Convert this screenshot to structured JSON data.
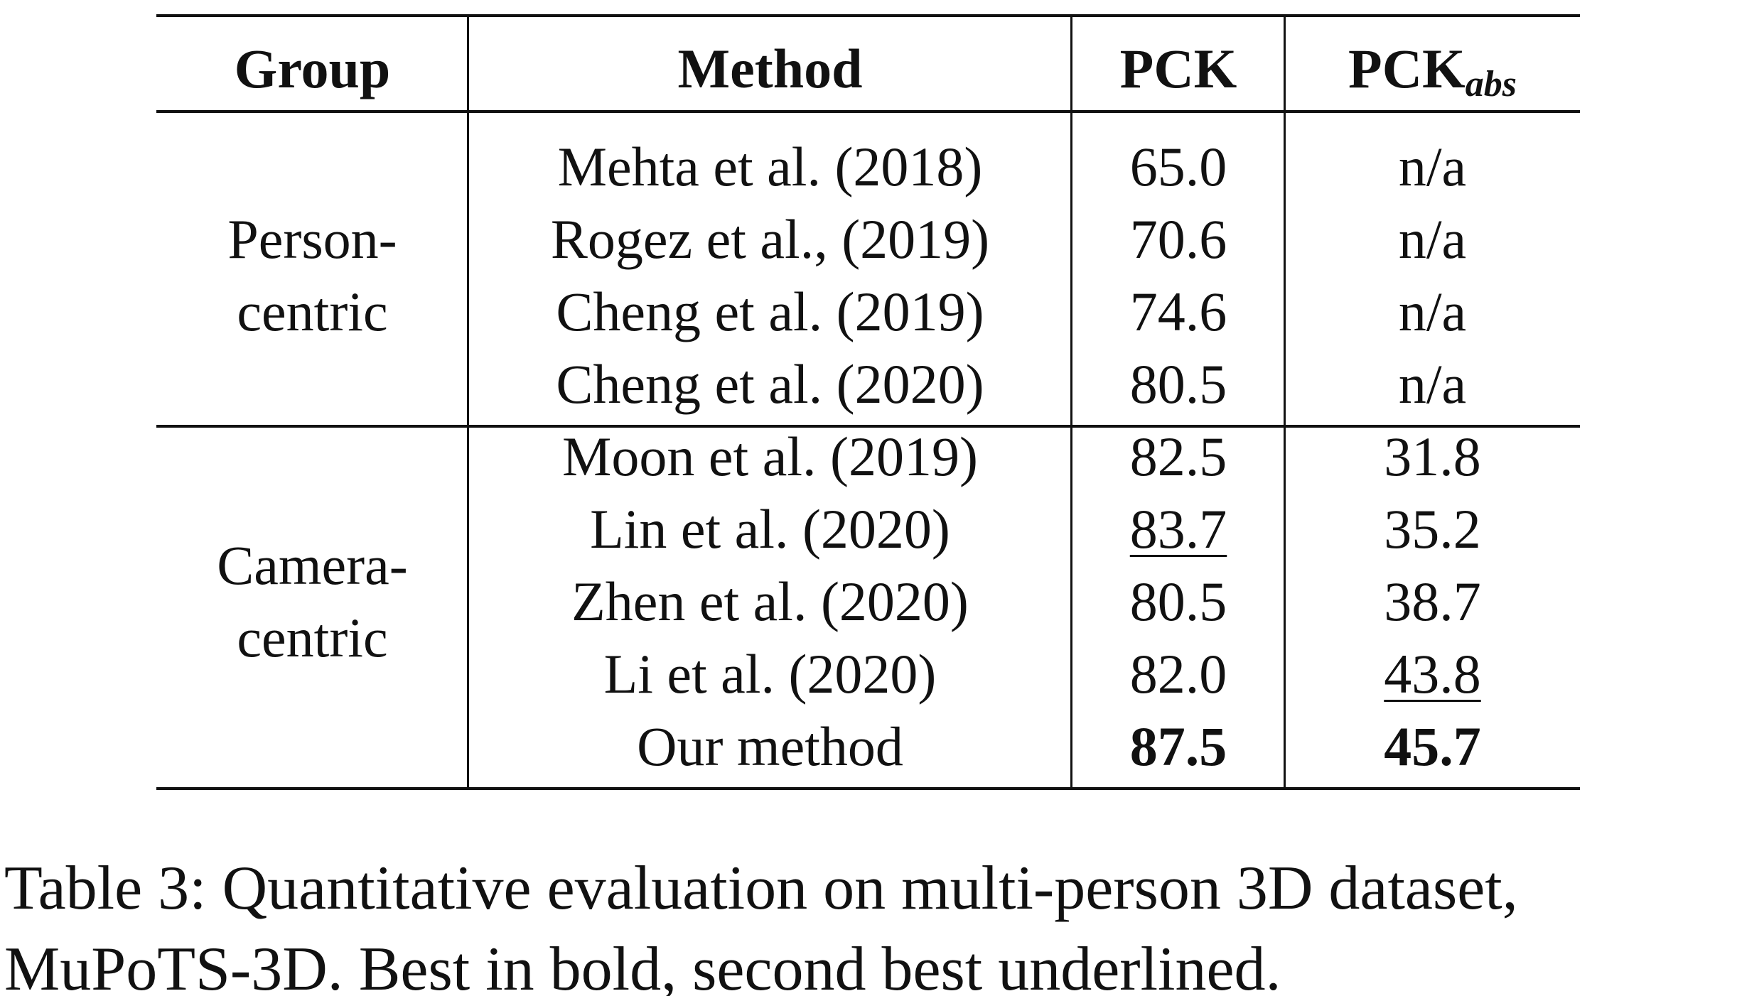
{
  "table": {
    "columns": [
      {
        "text": "Group"
      },
      {
        "text": "Method"
      },
      {
        "text": "PCK"
      },
      {
        "text": "PCK",
        "sub": "abs"
      }
    ],
    "groups": [
      {
        "label": [
          "Person-",
          "centric"
        ],
        "rows": [
          [
            "Mehta et al. (2018)",
            "65.0",
            "n/a"
          ],
          [
            "Rogez et al., (2019)",
            "70.6",
            "n/a"
          ],
          [
            "Cheng et al. (2019)",
            "74.6",
            "n/a"
          ],
          [
            "Cheng et al. (2020)",
            "80.5",
            "n/a"
          ]
        ],
        "bold": [],
        "underline": []
      },
      {
        "label": [
          "Camera-",
          "centric"
        ],
        "rows": [
          [
            "Moon et al. (2019)",
            "82.5",
            "31.8"
          ],
          [
            "Lin et al. (2020)",
            "83.7",
            "35.2"
          ],
          [
            "Zhen et al. (2020)",
            "80.5",
            "38.7"
          ],
          [
            "Li et al. (2020)",
            "82.0",
            "43.8"
          ],
          [
            "Our method",
            "87.5",
            "45.7"
          ]
        ],
        "bold": [
          [
            4,
            1
          ],
          [
            4,
            2
          ]
        ],
        "underline": [
          [
            1,
            1
          ],
          [
            3,
            2
          ]
        ]
      }
    ]
  },
  "caption": [
    "Table 3: Quantitative evaluation on multi-person 3D dataset,",
    "MuPoTS-3D. Best in bold, second best underlined."
  ]
}
